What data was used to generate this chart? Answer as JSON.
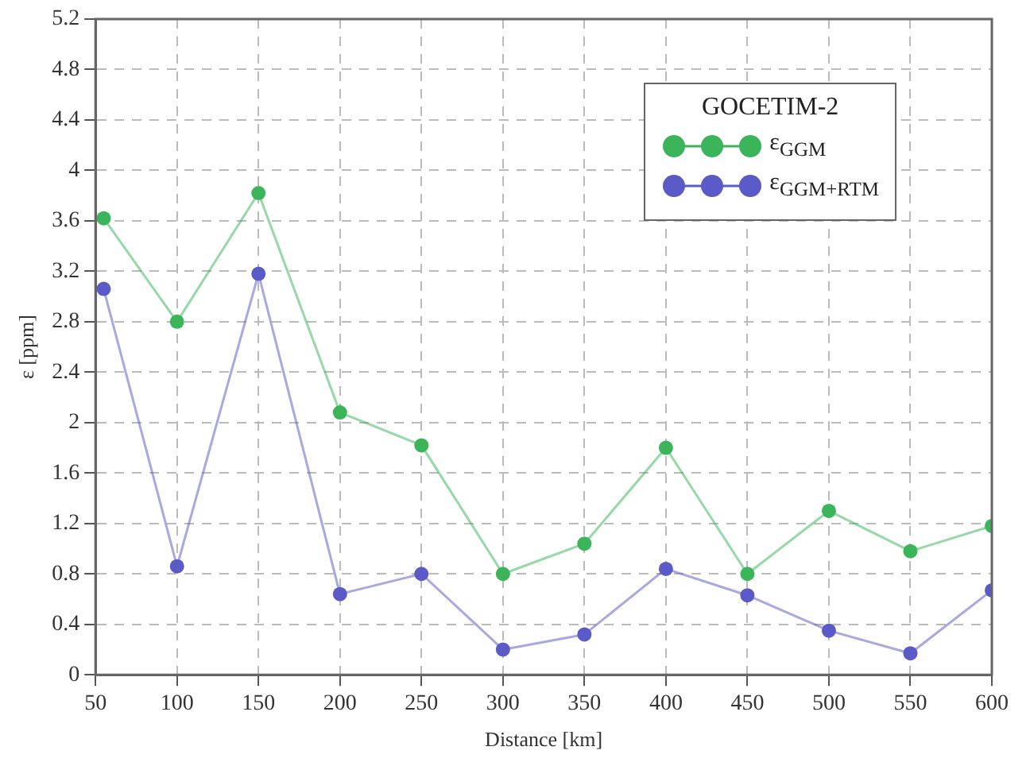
{
  "chart_data": {
    "type": "line",
    "xlabel": "Distance [km]",
    "ylabel": "ε [ppm]",
    "legend_title": "GOCETIM-2",
    "x": [
      55,
      100,
      150,
      200,
      250,
      300,
      350,
      400,
      450,
      500,
      550,
      600
    ],
    "series": [
      {
        "name": "ε$_{GGM}$",
        "color": "#3cb55a",
        "values": [
          3.62,
          2.8,
          3.82,
          2.08,
          1.82,
          0.8,
          1.04,
          1.8,
          0.8,
          1.3,
          0.98,
          1.18
        ]
      },
      {
        "name": "ε$_{GGM+RTM}$",
        "color": "#5b5bc8",
        "values": [
          3.06,
          0.86,
          3.18,
          0.64,
          0.8,
          0.2,
          0.32,
          0.84,
          0.63,
          0.35,
          0.17,
          0.67
        ]
      }
    ],
    "xlim": [
      50,
      600
    ],
    "xticks": [
      50,
      100,
      150,
      200,
      250,
      300,
      350,
      400,
      450,
      500,
      550,
      600
    ],
    "ylim": [
      0,
      5.2
    ],
    "yticks": [
      0,
      0.4,
      0.8,
      1.2,
      1.6,
      2,
      2.4,
      2.8,
      3.2,
      3.6,
      4,
      4.4,
      4.8,
      5.2
    ],
    "grid": true,
    "legend": "top right",
    "marker": "circle",
    "line_style": "solid"
  }
}
